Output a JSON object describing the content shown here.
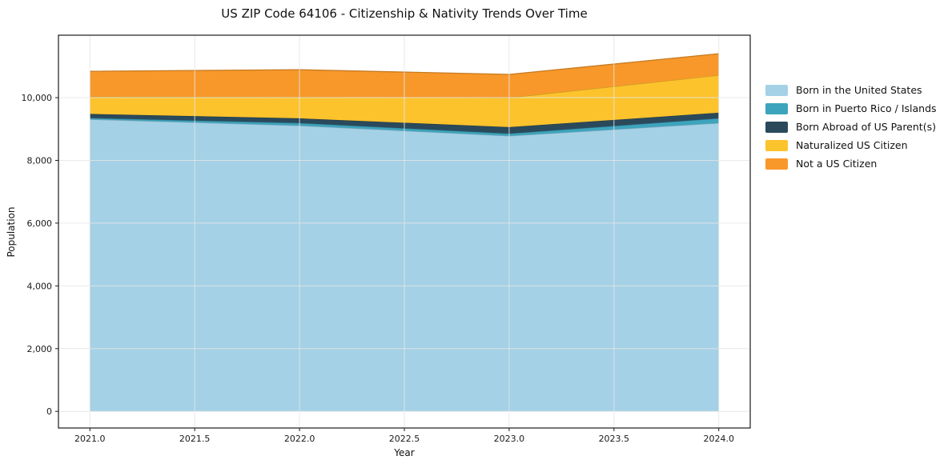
{
  "chart_data": {
    "type": "area",
    "stacked": true,
    "title": "US ZIP Code 64106 - Citizenship & Nativity Trends Over Time",
    "xlabel": "Year",
    "ylabel": "Population",
    "x": [
      2021,
      2022,
      2023,
      2024
    ],
    "series": [
      {
        "name": "Born in the United States",
        "color": "#a4d1e6",
        "values": [
          9310,
          9110,
          8780,
          9190
        ]
      },
      {
        "name": "Born in Puerto Rico / Islands",
        "color": "#3da4bd",
        "values": [
          40,
          80,
          75,
          150
        ]
      },
      {
        "name": "Born Abroad of US Parent(s)",
        "color": "#2a4a5c",
        "values": [
          130,
          150,
          205,
          180
        ]
      },
      {
        "name": "Naturalized US Citizen",
        "color": "#fdc32d",
        "values": [
          550,
          680,
          940,
          1195
        ]
      },
      {
        "name": "Not a US Citizen",
        "color": "#f8982a",
        "values": [
          810,
          870,
          740,
          685
        ]
      }
    ],
    "stack_totals": [
      10840,
      10890,
      10740,
      11400
    ],
    "xlim": [
      2020.85,
      2024.15
    ],
    "ylim": [
      -530,
      11990
    ],
    "xticks": [
      2021.0,
      2021.5,
      2022.0,
      2022.5,
      2023.0,
      2023.5,
      2024.0
    ],
    "xtick_labels": [
      "2021.0",
      "2021.5",
      "2022.0",
      "2022.5",
      "2023.0",
      "2023.5",
      "2024.0"
    ],
    "yticks": [
      0,
      2000,
      4000,
      6000,
      8000,
      10000
    ],
    "ytick_labels": [
      "0",
      "2,000",
      "4,000",
      "6,000",
      "8,000",
      "10,000"
    ],
    "grid": true,
    "legend_position": "outside-right",
    "colors": {
      "spine": "#1a1a1a",
      "tick_text": "#1a1a1a",
      "gridline": "#e6e6e6",
      "background": "#ffffff"
    }
  }
}
